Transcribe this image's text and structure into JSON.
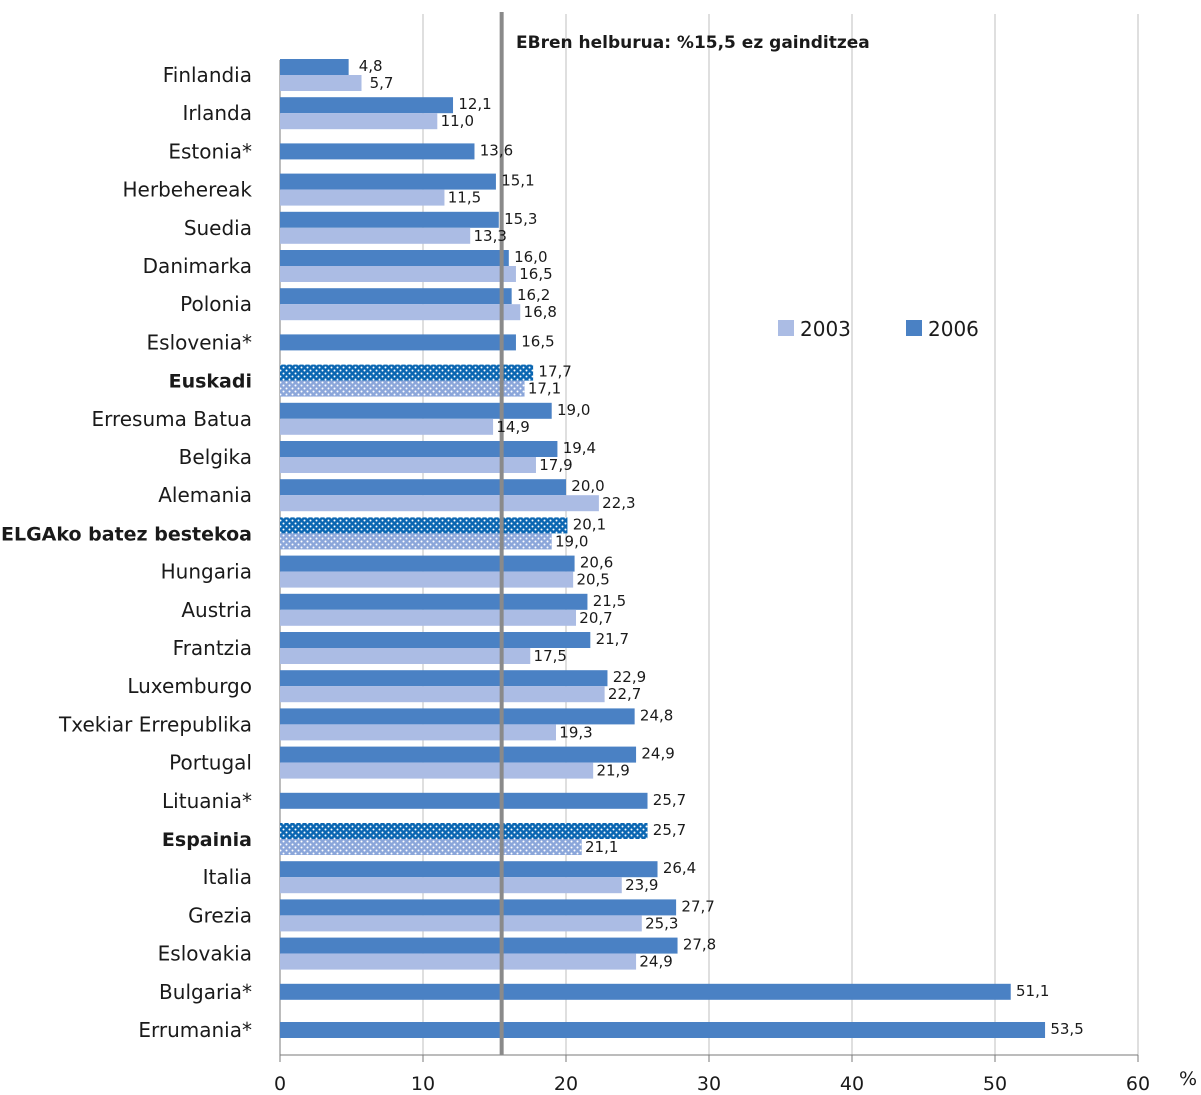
{
  "chart_data": {
    "type": "bar",
    "orientation": "horizontal",
    "annotation": "EBren helburua: %15,5  ez gainditzea",
    "target_line": 15.5,
    "xlim": [
      0,
      60
    ],
    "xticks": [
      "0",
      "10",
      "20",
      "30",
      "40",
      "50",
      "60"
    ],
    "xunit": "%",
    "grid": true,
    "legend_position": "right, upper-middle",
    "legend": [
      {
        "label": "2003",
        "color": "#abbce4"
      },
      {
        "label": "2006",
        "color": "#4a81c4"
      }
    ],
    "colors": {
      "s2003": "#abbce4",
      "s2006": "#4a81c4",
      "highlight_2006": "#0a66b2",
      "target_line": "#8a8a8a",
      "grid": "#bfbfbf"
    },
    "categories": [
      {
        "label": "Finlandia",
        "v2006": 4.8,
        "v2003": 5.7,
        "l2006": "4,8",
        "l2003": "5,7",
        "bold": false
      },
      {
        "label": "Irlanda",
        "v2006": 12.1,
        "v2003": 11.0,
        "l2006": "12,1",
        "l2003": "11,0",
        "bold": false
      },
      {
        "label": "Estonia*",
        "v2006": 13.6,
        "v2003": null,
        "l2006": "13,6",
        "l2003": null,
        "bold": false
      },
      {
        "label": "Herbehereak",
        "v2006": 15.1,
        "v2003": 11.5,
        "l2006": "15,1",
        "l2003": "11,5",
        "bold": false
      },
      {
        "label": "Suedia",
        "v2006": 15.3,
        "v2003": 13.3,
        "l2006": "15,3",
        "l2003": "13,3",
        "bold": false
      },
      {
        "label": "Danimarka",
        "v2006": 16.0,
        "v2003": 16.5,
        "l2006": "16,0",
        "l2003": "16,5",
        "bold": false
      },
      {
        "label": "Polonia",
        "v2006": 16.2,
        "v2003": 16.8,
        "l2006": "16,2",
        "l2003": "16,8",
        "bold": false
      },
      {
        "label": "Eslovenia*",
        "v2006": 16.5,
        "v2003": null,
        "l2006": "16,5",
        "l2003": null,
        "bold": false
      },
      {
        "label": "Euskadi",
        "v2006": 17.7,
        "v2003": 17.1,
        "l2006": "17,7",
        "l2003": "17,1",
        "bold": true
      },
      {
        "label": "Erresuma Batua",
        "v2006": 19.0,
        "v2003": 14.9,
        "l2006": "19,0",
        "l2003": "14,9",
        "bold": false
      },
      {
        "label": "Belgika",
        "v2006": 19.4,
        "v2003": 17.9,
        "l2006": "19,4",
        "l2003": "17,9",
        "bold": false
      },
      {
        "label": "Alemania",
        "v2006": 20.0,
        "v2003": 22.3,
        "l2006": "20,0",
        "l2003": "22,3",
        "bold": false
      },
      {
        "label": "ELGAko batez bestekoa",
        "v2006": 20.1,
        "v2003": 19.0,
        "l2006": "20,1",
        "l2003": "19,0",
        "bold": true
      },
      {
        "label": "Hungaria",
        "v2006": 20.6,
        "v2003": 20.5,
        "l2006": "20,6",
        "l2003": "20,5",
        "bold": false
      },
      {
        "label": "Austria",
        "v2006": 21.5,
        "v2003": 20.7,
        "l2006": "21,5",
        "l2003": "20,7",
        "bold": false
      },
      {
        "label": "Frantzia",
        "v2006": 21.7,
        "v2003": 17.5,
        "l2006": "21,7",
        "l2003": "17,5",
        "bold": false
      },
      {
        "label": "Luxemburgo",
        "v2006": 22.9,
        "v2003": 22.7,
        "l2006": "22,9",
        "l2003": "22,7",
        "bold": false
      },
      {
        "label": "Txekiar Errepublika",
        "v2006": 24.8,
        "v2003": 19.3,
        "l2006": "24,8",
        "l2003": "19,3",
        "bold": false
      },
      {
        "label": "Portugal",
        "v2006": 24.9,
        "v2003": 21.9,
        "l2006": "24,9",
        "l2003": "21,9",
        "bold": false
      },
      {
        "label": "Lituania*",
        "v2006": 25.7,
        "v2003": null,
        "l2006": "25,7",
        "l2003": null,
        "bold": false
      },
      {
        "label": "Espainia",
        "v2006": 25.7,
        "v2003": 21.1,
        "l2006": "25,7",
        "l2003": "21,1",
        "bold": true
      },
      {
        "label": "Italia",
        "v2006": 26.4,
        "v2003": 23.9,
        "l2006": "26,4",
        "l2003": "23,9",
        "bold": false
      },
      {
        "label": "Grezia",
        "v2006": 27.7,
        "v2003": 25.3,
        "l2006": "27,7",
        "l2003": "25,3",
        "bold": false
      },
      {
        "label": "Eslovakia",
        "v2006": 27.8,
        "v2003": 24.9,
        "l2006": "27,8",
        "l2003": "24,9",
        "bold": false
      },
      {
        "label": "Bulgaria*",
        "v2006": 51.1,
        "v2003": null,
        "l2006": "51,1",
        "l2003": null,
        "bold": false
      },
      {
        "label": "Errumania*",
        "v2006": 53.5,
        "v2003": null,
        "l2006": "53,5",
        "l2003": null,
        "bold": false
      }
    ]
  }
}
